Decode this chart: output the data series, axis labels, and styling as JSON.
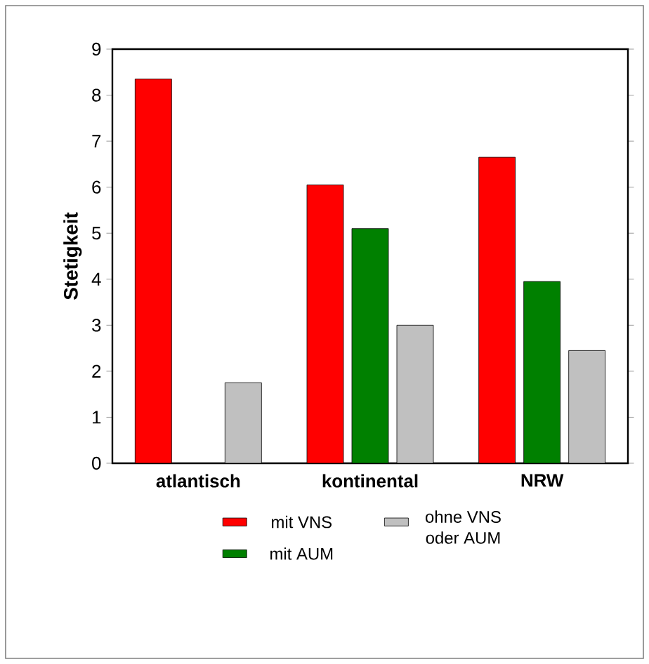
{
  "chart_data": {
    "type": "bar",
    "ylabel": "Stetigkeit",
    "categories": [
      "atlantisch",
      "kontinental",
      "NRW"
    ],
    "series": [
      {
        "name": "mit VNS",
        "color": "#ff0000",
        "values": [
          8.35,
          6.05,
          6.65
        ]
      },
      {
        "name": "mit AUM",
        "color": "#008000",
        "values": [
          null,
          5.1,
          3.95
        ]
      },
      {
        "name": "ohne VNS oder AUM",
        "color": "#c0c0c0",
        "values": [
          1.75,
          3.0,
          2.45
        ]
      }
    ],
    "ylim": [
      0,
      9
    ],
    "yticks": [
      0,
      1,
      2,
      3,
      4,
      5,
      6,
      7,
      8,
      9
    ],
    "legend": "bottom"
  }
}
